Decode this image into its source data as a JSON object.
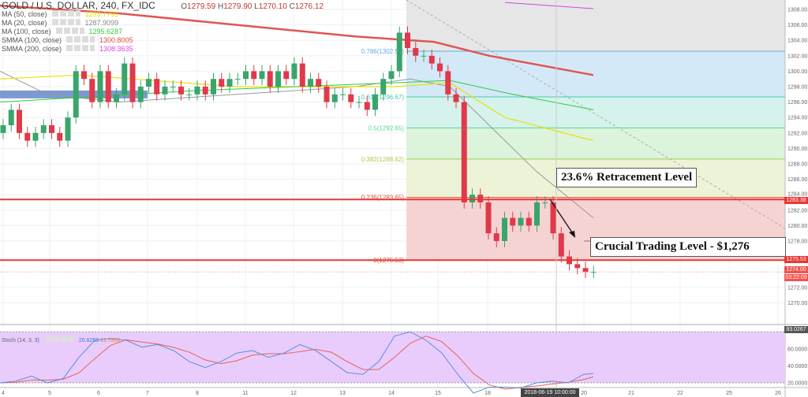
{
  "header": {
    "symbol": "GOLD / U.S. DOLLAR, 240, FX_IDC",
    "o_label": "O",
    "o": "1279.59",
    "h_label": "H",
    "h": "1279.90",
    "l_label": "L",
    "l": "1270.10",
    "c_label": "C",
    "c": "1276.12"
  },
  "indicators": [
    {
      "name": "MA (50, close)",
      "value": "1293.7791",
      "color": "#e8e000"
    },
    {
      "name": "MA (20, close)",
      "value": "1287.9099",
      "color": "#888888"
    },
    {
      "name": "MA (100, close)",
      "value": "1295.6287",
      "color": "#2ecc40"
    },
    {
      "name": "SMMA (100, close)",
      "value": "1300.8005",
      "color": "#e74c3c"
    },
    {
      "name": "SMMA (200, close)",
      "value": "1308.3635",
      "color": "#e040e0"
    }
  ],
  "stoch": {
    "name": "Stoch (14, 3, 3)",
    "k": "20.8268",
    "d": "21.7852",
    "last": "83.0267"
  },
  "annotations": {
    "retracement": "23.6% Retracement Level",
    "crucial": "Crucial Trading Level - $1,276"
  },
  "price_labels": {
    "l1": "1283.38",
    "l2": "1275.53",
    "l3": "1274.00",
    "l4": "03:22:09"
  },
  "crosshair_date": "2018-06-19 10:00:00",
  "chart_data": {
    "type": "candlestick",
    "yticks": [
      1308,
      1306,
      1304,
      1302,
      1300,
      1298,
      1296,
      1294,
      1292,
      1290,
      1288,
      1286,
      1284,
      1282,
      1280,
      1278,
      1272,
      1270
    ],
    "xticks": [
      "4",
      "5",
      "6",
      "7",
      "8",
      "11",
      "12",
      "13",
      "14",
      "15",
      "18",
      "20",
      "21",
      "22",
      "25",
      "26"
    ],
    "ylim": [
      1269,
      1309
    ],
    "closes": [
      1293,
      1295,
      1292,
      1291,
      1292,
      1293,
      1292,
      1291,
      1294,
      1300,
      1299,
      1296,
      1300,
      1296,
      1297,
      1301,
      1296,
      1298,
      1299,
      1297,
      1298,
      1298,
      1297,
      1297,
      1298,
      1297,
      1299,
      1298,
      1299,
      1299,
      1300,
      1299,
      1300,
      1298,
      1300,
      1299,
      1301,
      1298,
      1299,
      1298,
      1296,
      1297,
      1297,
      1296,
      1296,
      1295,
      1297,
      1299,
      1300,
      1305,
      1303,
      1302,
      1302,
      1301,
      1300,
      1297,
      1296,
      1283,
      1284,
      1283,
      1279,
      1278,
      1281,
      1280,
      1281,
      1280,
      1283,
      1283,
      1279,
      1276,
      1275,
      1274.5,
      1274,
      1274
    ],
    "first_open": 1292,
    "fib": [
      {
        "level": "0.786",
        "price": 1302.59,
        "color": "#5dade2"
      },
      {
        "level": "0.618",
        "price": 1296.67,
        "color": "#48c9b0"
      },
      {
        "level": "0.5",
        "price": 1292.65,
        "color": "#58d68d"
      },
      {
        "level": "0.382",
        "price": 1288.62,
        "color": "#a9cc52"
      },
      {
        "level": "0.236",
        "price": 1283.65,
        "color": "#e74c3c"
      },
      {
        "level": "0",
        "price": 1275.53,
        "color": "#e74c3c"
      }
    ],
    "horizontal_levels": [
      1283.38,
      1275.53
    ],
    "stoch_k": [
      20,
      22,
      28,
      20,
      25,
      50,
      70,
      72,
      70,
      62,
      65,
      58,
      45,
      38,
      45,
      55,
      58,
      50,
      55,
      65,
      58,
      45,
      32,
      30,
      45,
      75,
      80,
      70,
      55,
      30,
      8,
      15,
      15,
      14,
      20,
      22,
      20,
      30,
      31
    ],
    "stoch_bands": [
      80,
      20
    ],
    "stoch_yticks": [
      60,
      40,
      20
    ]
  }
}
